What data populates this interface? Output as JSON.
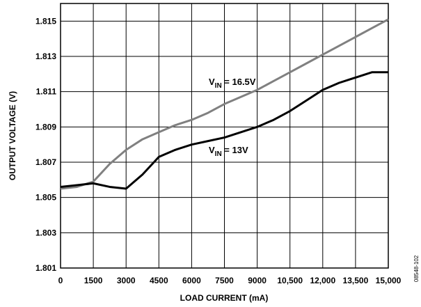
{
  "chart_data": {
    "type": "line",
    "xlabel": "LOAD CURRENT (mA)",
    "ylabel": "OUTPUT VOLTAGE (V)",
    "figure_id": "08548-102",
    "x": [
      0,
      750,
      1500,
      2250,
      3000,
      3750,
      4500,
      5250,
      6000,
      6750,
      7500,
      8250,
      9000,
      9750,
      10500,
      11250,
      12000,
      12750,
      13500,
      14250,
      15000
    ],
    "series": [
      {
        "color": "#808080",
        "values": [
          1.8055,
          1.8056,
          1.8059,
          1.8069,
          1.8077,
          1.8083,
          1.8087,
          1.8091,
          1.8094,
          1.8098,
          1.8103,
          1.8107,
          1.8111,
          1.8116,
          1.8121,
          1.8126,
          1.8131,
          1.8136,
          1.8141,
          1.8146,
          1.8151
        ]
      },
      {
        "color": "#000000",
        "values": [
          1.8056,
          1.8057,
          1.8058,
          1.8056,
          1.8055,
          1.8063,
          1.8073,
          1.8077,
          1.808,
          1.8082,
          1.8084,
          1.8087,
          1.809,
          1.8094,
          1.8099,
          1.8105,
          1.8111,
          1.8115,
          1.8118,
          1.8121,
          1.8121
        ]
      }
    ],
    "annotations": [
      {
        "prefix": "V",
        "subscript": "IN",
        "suffix": " = 16.5V"
      },
      {
        "prefix": "V",
        "subscript": "IN",
        "suffix": " = 13V"
      }
    ],
    "xlim": [
      0,
      15000
    ],
    "xticks": [
      0,
      1500,
      3000,
      4500,
      6000,
      7500,
      9000,
      {
        "value": 10500,
        "label": "10,500"
      },
      {
        "value": 12000,
        "label": "12,000"
      },
      {
        "value": 13500,
        "label": "13,500"
      },
      {
        "value": 15000,
        "label": "15,000"
      }
    ],
    "ylim": [
      1.801,
      1.816
    ],
    "yticks": [
      1.801,
      1.803,
      1.805,
      1.807,
      1.809,
      1.811,
      1.813,
      1.815
    ],
    "grid": true
  }
}
